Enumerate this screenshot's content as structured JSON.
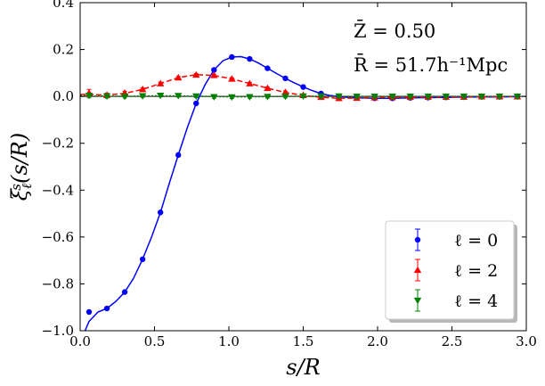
{
  "chart_data": {
    "type": "scatter",
    "xlabel": "s/R",
    "ylabel": "ξ_ℓ^s(s/R)",
    "xlim": [
      0.0,
      3.0
    ],
    "ylim": [
      -1.0,
      0.4
    ],
    "x_ticks": [
      0.0,
      0.5,
      1.0,
      1.5,
      2.0,
      2.5,
      3.0
    ],
    "y_ticks": [
      -1.0,
      -0.8,
      -0.6,
      -0.4,
      -0.2,
      0.0,
      0.2,
      0.4
    ],
    "x_tick_labels": [
      "0.0",
      "0.5",
      "1.0",
      "1.5",
      "2.0",
      "2.5",
      "3.0"
    ],
    "y_tick_labels": [
      "−1.0",
      "−0.8",
      "−0.6",
      "−0.4",
      "−0.2",
      "0.0",
      "0.2",
      "0.4"
    ],
    "grid": false,
    "zero_line": true,
    "annotations": [
      "Z̄ = 0.50",
      "R̄ = 51.7h⁻¹Mpc"
    ],
    "legend_position": "lower-right",
    "series": [
      {
        "name": "ℓ = 0",
        "color": "#0000ff",
        "marker": "circle",
        "line_style": "solid",
        "points": [
          [
            0.06,
            -0.92
          ],
          [
            0.18,
            -0.905
          ],
          [
            0.3,
            -0.835
          ],
          [
            0.42,
            -0.695
          ],
          [
            0.54,
            -0.495
          ],
          [
            0.66,
            -0.25
          ],
          [
            0.78,
            -0.03
          ],
          [
            0.9,
            0.113
          ],
          [
            1.02,
            0.168
          ],
          [
            1.14,
            0.16
          ],
          [
            1.26,
            0.12
          ],
          [
            1.38,
            0.077
          ],
          [
            1.5,
            0.04
          ],
          [
            1.62,
            0.012
          ],
          [
            1.74,
            0.0
          ],
          [
            1.86,
            -0.005
          ],
          [
            1.98,
            -0.008
          ],
          [
            2.1,
            -0.008
          ],
          [
            2.22,
            -0.006
          ],
          [
            2.34,
            -0.005
          ],
          [
            2.46,
            -0.004
          ],
          [
            2.58,
            -0.003
          ],
          [
            2.7,
            -0.002
          ],
          [
            2.82,
            -0.002
          ],
          [
            2.94,
            -0.001
          ]
        ],
        "curve": [
          [
            0.02,
            -1.02
          ],
          [
            0.06,
            -0.96
          ],
          [
            0.12,
            -0.92
          ],
          [
            0.18,
            -0.905
          ],
          [
            0.24,
            -0.875
          ],
          [
            0.3,
            -0.835
          ],
          [
            0.36,
            -0.775
          ],
          [
            0.42,
            -0.695
          ],
          [
            0.48,
            -0.6
          ],
          [
            0.54,
            -0.495
          ],
          [
            0.6,
            -0.37
          ],
          [
            0.66,
            -0.25
          ],
          [
            0.72,
            -0.135
          ],
          [
            0.78,
            -0.03
          ],
          [
            0.84,
            0.05
          ],
          [
            0.9,
            0.113
          ],
          [
            0.96,
            0.152
          ],
          [
            1.02,
            0.168
          ],
          [
            1.08,
            0.17
          ],
          [
            1.14,
            0.16
          ],
          [
            1.2,
            0.142
          ],
          [
            1.26,
            0.12
          ],
          [
            1.32,
            0.098
          ],
          [
            1.38,
            0.077
          ],
          [
            1.44,
            0.058
          ],
          [
            1.5,
            0.04
          ],
          [
            1.56,
            0.025
          ],
          [
            1.62,
            0.012
          ],
          [
            1.68,
            0.004
          ],
          [
            1.74,
            0.0
          ],
          [
            1.8,
            -0.004
          ],
          [
            1.86,
            -0.006
          ],
          [
            1.92,
            -0.007
          ],
          [
            1.98,
            -0.008
          ],
          [
            2.1,
            -0.008
          ],
          [
            2.22,
            -0.006
          ],
          [
            2.34,
            -0.005
          ],
          [
            2.46,
            -0.004
          ],
          [
            2.58,
            -0.003
          ],
          [
            2.7,
            -0.002
          ],
          [
            2.82,
            -0.002
          ],
          [
            2.94,
            -0.001
          ]
        ]
      },
      {
        "name": "ℓ = 2",
        "color": "#ff0000",
        "marker": "triangle-up",
        "line_style": "dashed",
        "points": [
          [
            0.06,
            0.015
          ],
          [
            0.18,
            0.006
          ],
          [
            0.3,
            0.015
          ],
          [
            0.42,
            0.03
          ],
          [
            0.54,
            0.055
          ],
          [
            0.66,
            0.08
          ],
          [
            0.78,
            0.092
          ],
          [
            0.9,
            0.09
          ],
          [
            1.02,
            0.075
          ],
          [
            1.14,
            0.055
          ],
          [
            1.26,
            0.035
          ],
          [
            1.38,
            0.018
          ],
          [
            1.5,
            0.005
          ],
          [
            1.62,
            -0.003
          ],
          [
            1.74,
            -0.008
          ],
          [
            1.86,
            -0.007
          ],
          [
            1.98,
            -0.005
          ],
          [
            2.1,
            -0.004
          ],
          [
            2.22,
            -0.003
          ],
          [
            2.34,
            -0.002
          ],
          [
            2.46,
            -0.002
          ],
          [
            2.58,
            -0.002
          ],
          [
            2.7,
            -0.001
          ],
          [
            2.82,
            -0.001
          ],
          [
            2.94,
            -0.001
          ]
        ],
        "errors": [
          0.015,
          0.008,
          0.007,
          0.006,
          0.006,
          0.005,
          0.005,
          0.005,
          0.005,
          0.005,
          0.005,
          0.005,
          0.005,
          0.008,
          0.008,
          0.008,
          0.008,
          0.008,
          0.008,
          0.008,
          0.008,
          0.008,
          0.008,
          0.008,
          0.008
        ],
        "curve": [
          [
            0.0,
            0.008
          ],
          [
            0.06,
            0.008
          ],
          [
            0.18,
            0.006
          ],
          [
            0.3,
            0.013
          ],
          [
            0.42,
            0.03
          ],
          [
            0.54,
            0.055
          ],
          [
            0.66,
            0.08
          ],
          [
            0.78,
            0.093
          ],
          [
            0.9,
            0.089
          ],
          [
            1.02,
            0.075
          ],
          [
            1.14,
            0.055
          ],
          [
            1.26,
            0.035
          ],
          [
            1.38,
            0.017
          ],
          [
            1.5,
            0.004
          ],
          [
            1.62,
            -0.004
          ],
          [
            1.74,
            -0.008
          ],
          [
            1.86,
            -0.007
          ],
          [
            1.98,
            -0.005
          ],
          [
            2.1,
            -0.004
          ],
          [
            2.22,
            -0.003
          ],
          [
            2.34,
            -0.002
          ],
          [
            2.46,
            -0.002
          ],
          [
            2.58,
            -0.002
          ],
          [
            2.7,
            -0.001
          ],
          [
            2.82,
            -0.001
          ],
          [
            2.94,
            -0.001
          ]
        ]
      },
      {
        "name": "ℓ = 4",
        "color": "#008000",
        "marker": "triangle-down",
        "line_style": "dotted",
        "points": [
          [
            0.06,
            0.004
          ],
          [
            0.18,
            0.001
          ],
          [
            0.3,
            0.0
          ],
          [
            0.42,
            0.002
          ],
          [
            0.54,
            0.004
          ],
          [
            0.66,
            0.003
          ],
          [
            0.78,
            0.001
          ],
          [
            0.9,
            -0.002
          ],
          [
            1.02,
            -0.003
          ],
          [
            1.14,
            -0.002
          ],
          [
            1.26,
            -0.001
          ],
          [
            1.38,
            0.0
          ],
          [
            1.5,
            0.001
          ],
          [
            1.62,
            0.001
          ],
          [
            1.74,
            0.001
          ],
          [
            1.86,
            0.0
          ],
          [
            1.98,
            0.0
          ],
          [
            2.1,
            0.0
          ],
          [
            2.22,
            0.0
          ],
          [
            2.34,
            0.0
          ],
          [
            2.46,
            0.0
          ],
          [
            2.58,
            0.0
          ],
          [
            2.7,
            0.0
          ],
          [
            2.82,
            0.0
          ],
          [
            2.94,
            0.0
          ]
        ],
        "errors": [
          0.01,
          0.008,
          0.007,
          0.006,
          0.006,
          0.006,
          0.006,
          0.006,
          0.006,
          0.006,
          0.006,
          0.006,
          0.006,
          0.008,
          0.008,
          0.008,
          0.008,
          0.008,
          0.008,
          0.008,
          0.008,
          0.008,
          0.008,
          0.008,
          0.008
        ],
        "curve": [
          [
            0.0,
            0.003
          ],
          [
            0.3,
            0.0
          ],
          [
            0.54,
            0.003
          ],
          [
            0.78,
            0.001
          ],
          [
            1.02,
            -0.002
          ],
          [
            1.26,
            -0.001
          ],
          [
            1.5,
            0.001
          ],
          [
            1.8,
            0.0
          ],
          [
            2.94,
            0.0
          ]
        ]
      }
    ]
  }
}
